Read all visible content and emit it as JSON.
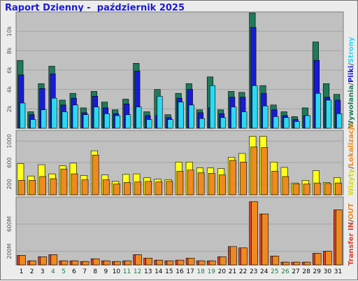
{
  "title": "Raport Dzienny -  październik 2025",
  "colors": {
    "hits": "#1f7a5a",
    "files": "#1a1ad6",
    "pages": "#2ad9f2",
    "visits": "#ffff1a",
    "sites": "#ee8a1e",
    "kb_in": "#d9402c",
    "kb_out": "#ee8a1e",
    "weekend_label": "#1f7a3a",
    "panel_bg": "#c0c0c0",
    "frame_bg": "#ececec"
  },
  "legends": {
    "panel1": [
      {
        "text": "Wywołania",
        "color": "#1f7a5a"
      },
      {
        "text": "/",
        "color": "#555555"
      },
      {
        "text": "Pliki",
        "color": "#1a1ad6"
      },
      {
        "text": "/",
        "color": "#555555"
      },
      {
        "text": "Strony",
        "color": "#2ad9f2"
      }
    ],
    "panel2": [
      {
        "text": "Wizyty",
        "color": "#d6d61a"
      },
      {
        "text": "/",
        "color": "#555555"
      },
      {
        "text": "Lokalizacje",
        "color": "#ee8a1e"
      }
    ],
    "panel3": [
      {
        "text": "Transfer",
        "color": "#d9402c"
      },
      {
        "text": "IN",
        "color": "#d9402c"
      },
      {
        "text": "/",
        "color": "#555555"
      },
      {
        "text": "OUT",
        "color": "#ee8a1e"
      }
    ]
  },
  "chart_data": [
    {
      "type": "bar",
      "name": "panel1",
      "categories": [
        "1",
        "2",
        "3",
        "4",
        "5",
        "6",
        "7",
        "8",
        "9",
        "10",
        "11",
        "12",
        "13",
        "14",
        "15",
        "16",
        "17",
        "18",
        "19",
        "20",
        "21",
        "22",
        "23",
        "24",
        "25",
        "26",
        "27",
        "28",
        "29",
        "30",
        "31"
      ],
      "weekend_days": [
        "4",
        "5",
        "11",
        "12",
        "18",
        "19",
        "25",
        "26"
      ],
      "ylim": [
        0,
        12000
      ],
      "yticks": [
        {
          "label": "2k",
          "value": 2000
        },
        {
          "label": "4k",
          "value": 4000
        },
        {
          "label": "6k",
          "value": 6000
        },
        {
          "label": "8k",
          "value": 8000
        },
        {
          "label": "10k",
          "value": 10000
        }
      ],
      "series": [
        {
          "name": "Wywołania",
          "values": [
            7000,
            1700,
            4600,
            6400,
            2900,
            3600,
            2100,
            3800,
            2700,
            1900,
            3000,
            6700,
            1700,
            4000,
            1400,
            3600,
            4600,
            1900,
            5300,
            1900,
            3800,
            3700,
            11900,
            4400,
            2400,
            1700,
            1200,
            2100,
            8900,
            4600,
            3500
          ]
        },
        {
          "name": "Pliki",
          "values": [
            5500,
            1400,
            4100,
            5600,
            2400,
            3100,
            1600,
            3300,
            2100,
            1500,
            2500,
            5900,
            1300,
            1300,
            1100,
            3100,
            4000,
            1600,
            2100,
            1500,
            3200,
            3200,
            10400,
            3600,
            1900,
            1300,
            900,
            1300,
            7000,
            3200,
            2900
          ]
        },
        {
          "name": "Strony",
          "values": [
            2600,
            900,
            1900,
            3100,
            1700,
            2400,
            1400,
            2200,
            1500,
            1300,
            1400,
            2200,
            900,
            3300,
            900,
            2700,
            2400,
            1000,
            4400,
            1100,
            2200,
            1700,
            4400,
            2300,
            1200,
            1100,
            700,
            1300,
            3600,
            2900,
            1500
          ]
        }
      ]
    },
    {
      "type": "bar",
      "name": "panel2",
      "categories": [
        "1",
        "2",
        "3",
        "4",
        "5",
        "6",
        "7",
        "8",
        "9",
        "10",
        "11",
        "12",
        "13",
        "14",
        "15",
        "16",
        "17",
        "18",
        "19",
        "20",
        "21",
        "22",
        "23",
        "24",
        "25",
        "26",
        "27",
        "28",
        "29",
        "30",
        "31"
      ],
      "ylim": [
        0,
        1200
      ],
      "yticks": [
        {
          "label": "200",
          "value": 200
        },
        {
          "label": "600",
          "value": 600
        },
        {
          "label": "1000",
          "value": 1000
        }
      ],
      "series": [
        {
          "name": "Wizyty",
          "values": [
            580,
            350,
            560,
            390,
            540,
            590,
            360,
            820,
            370,
            250,
            380,
            390,
            320,
            290,
            280,
            610,
            610,
            500,
            500,
            490,
            700,
            770,
            1090,
            1090,
            610,
            510,
            220,
            270,
            450,
            230,
            320
          ]
        },
        {
          "name": "Lokalizacje",
          "values": [
            270,
            270,
            340,
            300,
            480,
            390,
            280,
            740,
            280,
            200,
            230,
            240,
            250,
            240,
            250,
            440,
            460,
            410,
            400,
            370,
            640,
            610,
            890,
            880,
            440,
            340,
            200,
            200,
            220,
            210,
            220
          ]
        }
      ]
    },
    {
      "type": "bar",
      "name": "panel3",
      "categories": [
        "1",
        "2",
        "3",
        "4",
        "5",
        "6",
        "7",
        "8",
        "9",
        "10",
        "11",
        "12",
        "13",
        "14",
        "15",
        "16",
        "17",
        "18",
        "19",
        "20",
        "21",
        "22",
        "23",
        "24",
        "25",
        "26",
        "27",
        "28",
        "29",
        "30",
        "31"
      ],
      "ylim": [
        0,
        1000
      ],
      "yticks": [
        {
          "label": "200M",
          "value": 200
        },
        {
          "label": "600M",
          "value": 600
        }
      ],
      "series": [
        {
          "name": "Transfer IN",
          "values": [
            140,
            60,
            120,
            150,
            60,
            60,
            50,
            90,
            60,
            50,
            60,
            150,
            100,
            70,
            60,
            70,
            100,
            60,
            60,
            120,
            270,
            250,
            930,
            750,
            130,
            40,
            40,
            40,
            170,
            200,
            810
          ]
        },
        {
          "name": "Transfer OUT",
          "values": [
            140,
            60,
            120,
            150,
            60,
            60,
            50,
            90,
            60,
            50,
            60,
            150,
            100,
            70,
            60,
            70,
            100,
            60,
            60,
            120,
            270,
            250,
            930,
            750,
            130,
            40,
            40,
            40,
            170,
            200,
            810
          ]
        }
      ]
    }
  ]
}
